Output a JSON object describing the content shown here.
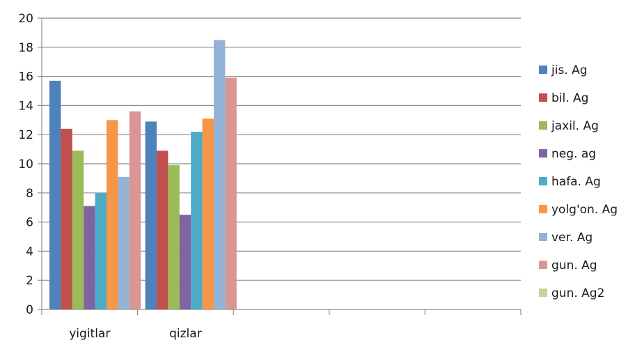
{
  "chart_data": {
    "type": "bar",
    "categories": [
      "yigitlar",
      "qizlar",
      "",
      "",
      ""
    ],
    "series": [
      {
        "name": "jis. Ag",
        "color": "#4f81bd",
        "values": [
          15.7,
          12.9,
          null,
          null,
          null
        ]
      },
      {
        "name": "bil. Ag",
        "color": "#c0504d",
        "values": [
          12.4,
          10.9,
          null,
          null,
          null
        ]
      },
      {
        "name": "jaxil. Ag",
        "color": "#9bbb59",
        "values": [
          10.9,
          9.9,
          null,
          null,
          null
        ]
      },
      {
        "name": "neg. ag",
        "color": "#8064a2",
        "values": [
          7.1,
          6.5,
          null,
          null,
          null
        ]
      },
      {
        "name": "hafa. Ag",
        "color": "#4bacc6",
        "values": [
          8.0,
          12.2,
          null,
          null,
          null
        ]
      },
      {
        "name": "yolg'on. Ag",
        "color": "#f79646",
        "values": [
          13.0,
          13.1,
          null,
          null,
          null
        ]
      },
      {
        "name": "ver. Ag",
        "color": "#95b3d7",
        "values": [
          9.1,
          18.5,
          null,
          null,
          null
        ]
      },
      {
        "name": "gun. Ag",
        "color": "#d99694",
        "values": [
          13.6,
          15.9,
          null,
          null,
          null
        ]
      },
      {
        "name": "gun. Ag2",
        "color": "#c3d69b",
        "values": [
          null,
          null,
          null,
          null,
          null
        ]
      }
    ],
    "yticks": [
      0,
      2,
      4,
      6,
      8,
      10,
      12,
      14,
      16,
      18,
      20
    ],
    "ylim": [
      0,
      20
    ],
    "grid": true,
    "legend": "right"
  }
}
